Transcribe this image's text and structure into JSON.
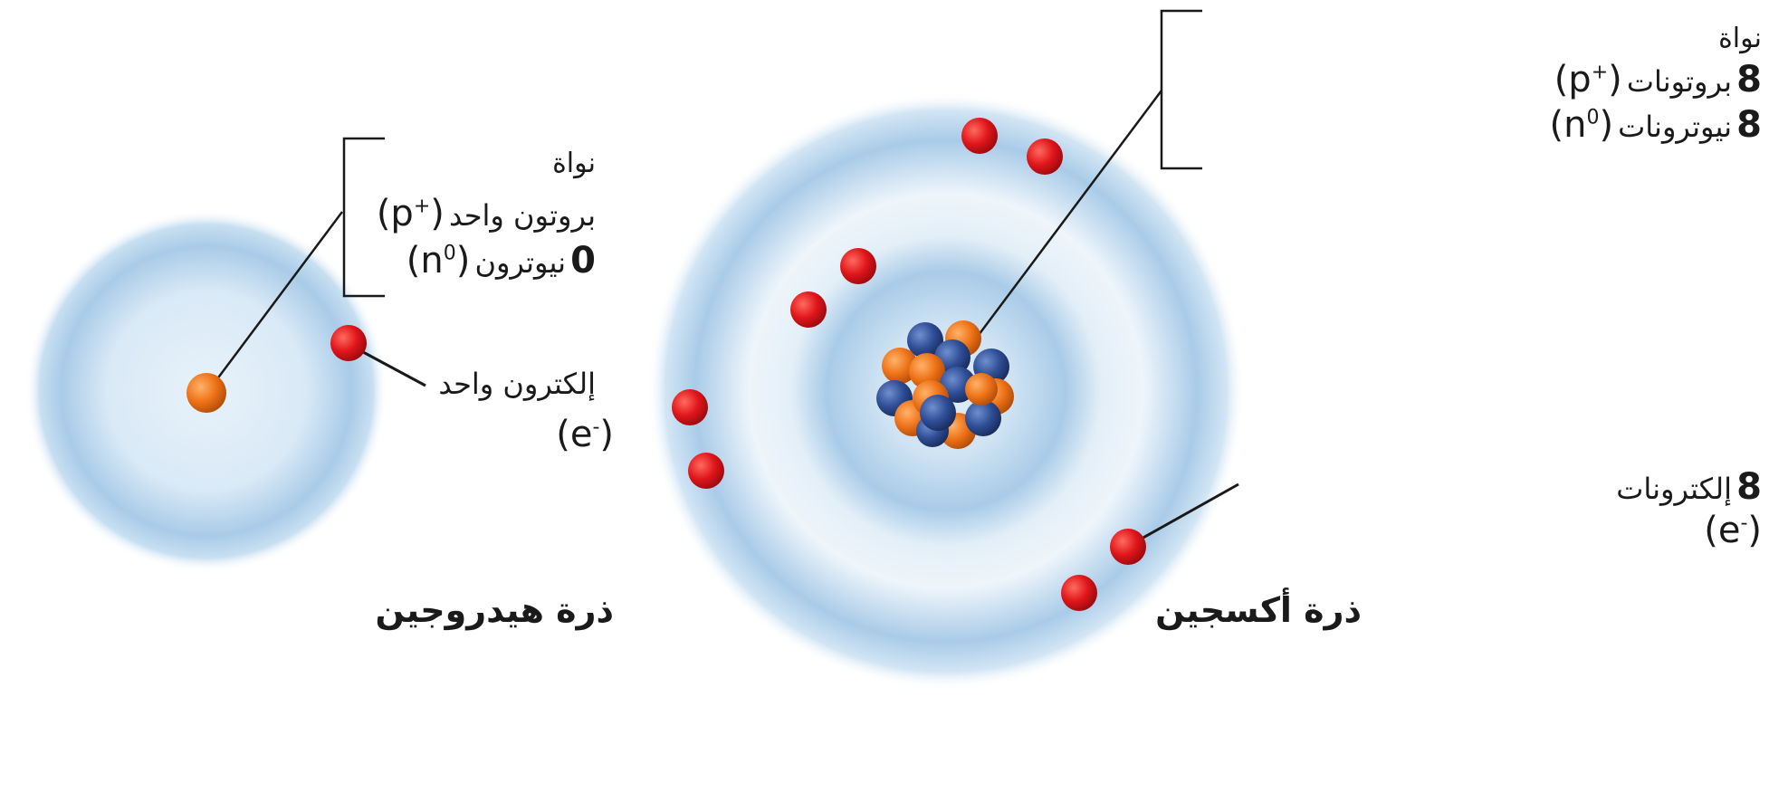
{
  "colors": {
    "cloud": "#a9cbe8",
    "cloud_center": "#dfeef8",
    "electron": "#d9141a",
    "proton": "#ee7318",
    "neutron": "#2f4e96",
    "line": "#1a1a1a"
  },
  "hydrogen": {
    "title": "ذرة هيدروجين",
    "nucleus_label": "نواة",
    "proton_text": "بروتون واحد",
    "proton_symbol": "(p+)",
    "neutron_count": "0",
    "neutron_text": "نيوترون",
    "neutron_symbol": "(n0)",
    "electron_text": "إلكترون واحد",
    "electron_symbol": "(e-)"
  },
  "oxygen": {
    "title": "ذرة أكسجين",
    "nucleus_label": "نواة",
    "proton_count": "8",
    "proton_text": "بروتونات",
    "proton_symbol": "(p+)",
    "neutron_count": "8",
    "neutron_text": "نيوترونات",
    "neutron_symbol": "(n0)",
    "electron_count": "8",
    "electron_text": "إلكترونات",
    "electron_symbol": "(e-)"
  }
}
